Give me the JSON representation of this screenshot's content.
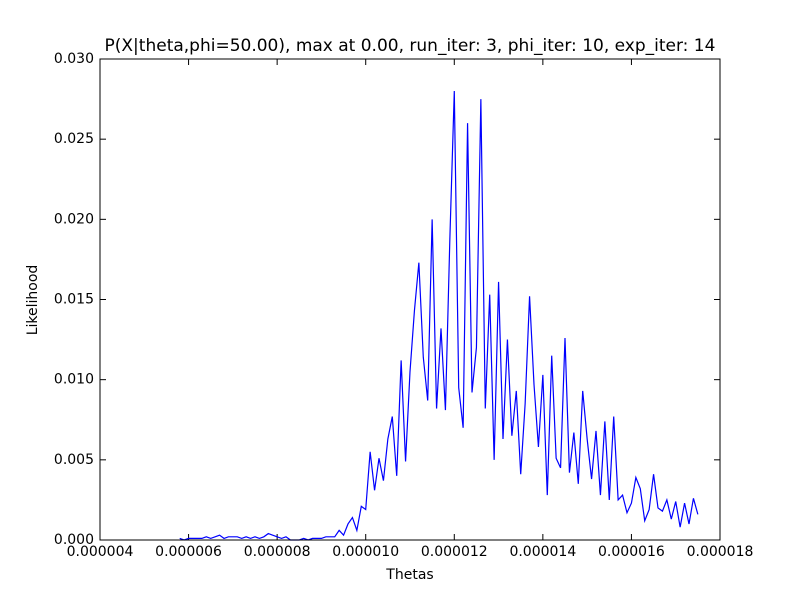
{
  "chart_data": {
    "type": "line",
    "title": "P(X|theta,phi=50.00), max at 0.00, run_iter: 3, phi_iter: 10, exp_iter: 14",
    "x_label": "Thetas",
    "y_label": "Likelihood",
    "xlim": [
      4e-06,
      1.8e-05
    ],
    "xticks": [
      4e-06,
      6e-06,
      8e-06,
      {
        "value": 1e-05,
        "label": "0.000010"
      },
      1.2e-05,
      1.4e-05,
      1.6e-05,
      1.8e-05
    ],
    "ylim": [
      0,
      0.03
    ],
    "yticks": [
      {
        "value": 0,
        "label": "0.000"
      },
      0.005,
      {
        "value": 0.01,
        "label": "0.010"
      },
      0.015,
      {
        "value": 0.02,
        "label": "0.020"
      },
      0.025,
      {
        "value": 0.03,
        "label": "0.030"
      }
    ],
    "series": [
      {
        "color": "#0000ff",
        "x": [
          5.8e-06,
          5.9e-06,
          6e-06,
          6.1e-06,
          6.2e-06,
          6.3e-06,
          6.4e-06,
          6.5e-06,
          6.6e-06,
          6.7e-06,
          6.8e-06,
          6.9e-06,
          7e-06,
          7.1e-06,
          7.2e-06,
          7.3e-06,
          7.4e-06,
          7.5e-06,
          7.6e-06,
          7.7e-06,
          7.8e-06,
          7.9e-06,
          8e-06,
          8.1e-06,
          8.2e-06,
          8.3e-06,
          8.4e-06,
          8.5e-06,
          8.6e-06,
          8.7e-06,
          8.8e-06,
          8.9e-06,
          9e-06,
          9.1e-06,
          9.2e-06,
          9.3e-06,
          9.4e-06,
          9.5e-06,
          9.6e-06,
          9.7e-06,
          9.8e-06,
          9.9e-06,
          1e-05,
          1.01e-05,
          1.02e-05,
          1.03e-05,
          1.04e-05,
          1.05e-05,
          1.06e-05,
          1.07e-05,
          1.08e-05,
          1.09e-05,
          1.1e-05,
          1.11e-05,
          1.12e-05,
          1.13e-05,
          1.14e-05,
          1.15e-05,
          1.16e-05,
          1.17e-05,
          1.18e-05,
          1.19e-05,
          1.2e-05,
          1.21e-05,
          1.22e-05,
          1.23e-05,
          1.24e-05,
          1.25e-05,
          1.26e-05,
          1.27e-05,
          1.28e-05,
          1.29e-05,
          1.3e-05,
          1.31e-05,
          1.32e-05,
          1.33e-05,
          1.34e-05,
          1.35e-05,
          1.36e-05,
          1.37e-05,
          1.38e-05,
          1.39e-05,
          1.4e-05,
          1.41e-05,
          1.42e-05,
          1.43e-05,
          1.44e-05,
          1.45e-05,
          1.46e-05,
          1.47e-05,
          1.48e-05,
          1.49e-05,
          1.5e-05,
          1.51e-05,
          1.52e-05,
          1.53e-05,
          1.54e-05,
          1.55e-05,
          1.56e-05,
          1.57e-05,
          1.58e-05,
          1.59e-05,
          1.6e-05,
          1.61e-05,
          1.62e-05,
          1.63e-05,
          1.64e-05,
          1.65e-05,
          1.66e-05,
          1.67e-05,
          1.68e-05,
          1.69e-05,
          1.7e-05,
          1.71e-05,
          1.72e-05,
          1.73e-05,
          1.74e-05,
          1.75e-05
        ],
        "values": [
          0.0001,
          0,
          0.0001,
          0.0001,
          0.0001,
          0.0001,
          0.0002,
          0.0001,
          0.0002,
          0.0003,
          0.0001,
          0.0002,
          0.0002,
          0.0002,
          0.0001,
          0.0002,
          0.0001,
          0.0002,
          0.0001,
          0.0002,
          0.0004,
          0.0003,
          0.0002,
          0.0001,
          0.0002,
          0,
          0,
          0,
          0.0001,
          0,
          0.0001,
          0.0001,
          0.0001,
          0.0002,
          0.0002,
          0.0002,
          0.0006,
          0.0003,
          0.001,
          0.0014,
          0.0006,
          0.0021,
          0.0019,
          0.0055,
          0.0031,
          0.0051,
          0.0037,
          0.0063,
          0.0077,
          0.004,
          0.0112,
          0.0049,
          0.0105,
          0.0143,
          0.0173,
          0.0114,
          0.0087,
          0.02,
          0.0082,
          0.0132,
          0.0081,
          0.0188,
          0.028,
          0.0095,
          0.007,
          0.026,
          0.0092,
          0.012,
          0.0275,
          0.0082,
          0.0153,
          0.005,
          0.0161,
          0.0063,
          0.0125,
          0.0065,
          0.0093,
          0.0041,
          0.0085,
          0.0152,
          0.0097,
          0.0058,
          0.0103,
          0.0028,
          0.0115,
          0.0051,
          0.0045,
          0.0126,
          0.0042,
          0.0067,
          0.0035,
          0.0093,
          0.0063,
          0.0038,
          0.0068,
          0.0028,
          0.0074,
          0.0025,
          0.0077,
          0.0025,
          0.0028,
          0.0017,
          0.0023,
          0.0039,
          0.0032,
          0.0012,
          0.0019,
          0.0041,
          0.002,
          0.0018,
          0.0025,
          0.0013,
          0.0024,
          0.0008,
          0.0023,
          0.001,
          0.0026,
          0.0016
        ]
      }
    ]
  }
}
